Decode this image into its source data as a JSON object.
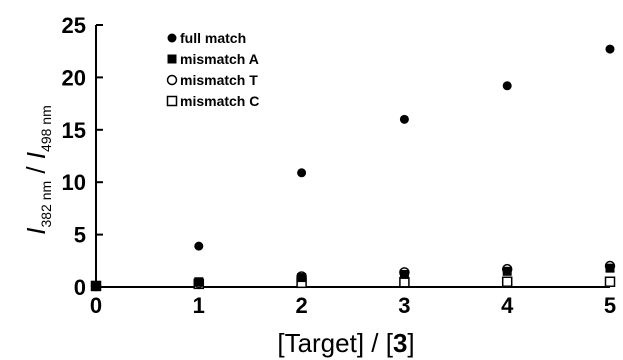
{
  "chart_data": {
    "type": "scatter",
    "x": [
      0,
      1,
      2,
      3,
      4,
      5
    ],
    "xticks": [
      "0",
      "1",
      "2",
      "3",
      "4",
      "5"
    ],
    "yticks": [
      "0",
      "5",
      "10",
      "15",
      "20",
      "25"
    ],
    "xlim": [
      0,
      5
    ],
    "ylim": [
      0,
      25
    ],
    "xlabel": {
      "pre": "[Target] / [",
      "bold": "3",
      "post": "]"
    },
    "ylabel": {
      "i1": "I",
      "sub1": "382 nm",
      "sep": " / ",
      "i2": "I",
      "sub2": "498 nm"
    },
    "legend_position": "top-left",
    "grid": false,
    "series": [
      {
        "name": "full match",
        "marker": "filled-circle",
        "values": [
          0.1,
          3.9,
          10.9,
          16.0,
          19.2,
          22.7
        ]
      },
      {
        "name": "mismatch A",
        "marker": "filled-square",
        "values": [
          0.1,
          0.5,
          0.9,
          1.2,
          1.5,
          1.8
        ]
      },
      {
        "name": "mismatch T",
        "marker": "open-circle",
        "values": [
          0.1,
          0.4,
          1.0,
          1.4,
          1.7,
          2.0
        ]
      },
      {
        "name": "mismatch C",
        "marker": "open-square",
        "values": [
          0.1,
          0.3,
          0.4,
          0.45,
          0.5,
          0.5
        ]
      }
    ]
  }
}
